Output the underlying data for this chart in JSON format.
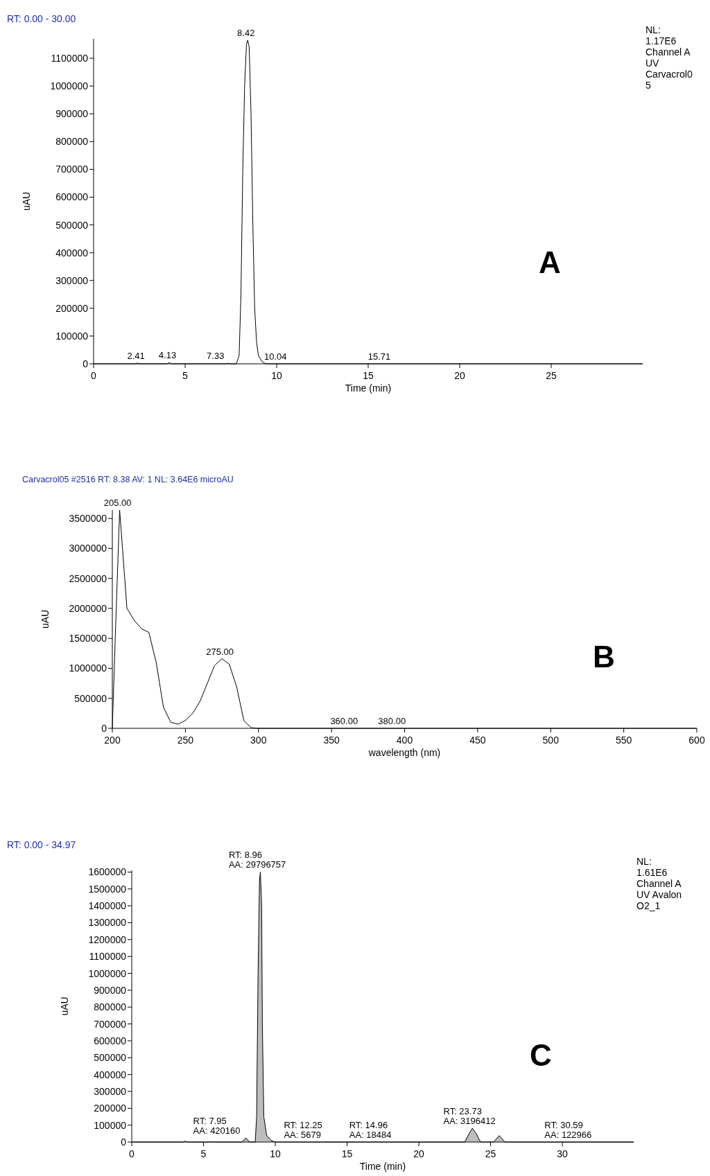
{
  "chart_data": [
    {
      "type": "line",
      "xlabel": "Time (min)",
      "ylabel": "uAU",
      "xlim": [
        0,
        30
      ],
      "xticks": [
        0,
        5,
        10,
        15,
        20,
        25
      ],
      "ylim": [
        0,
        1170000
      ],
      "yticks": [
        0,
        100000,
        200000,
        300000,
        400000,
        500000,
        600000,
        700000,
        800000,
        900000,
        1000000,
        1100000
      ],
      "grid": false,
      "marker": "none",
      "line_style": "solid",
      "series": [
        {
          "color": "#000000",
          "x": [
            0,
            2.3,
            2.41,
            2.5,
            4.0,
            4.13,
            4.25,
            7.2,
            7.33,
            7.45,
            7.8,
            7.95,
            8.05,
            8.15,
            8.25,
            8.35,
            8.42,
            8.5,
            8.6,
            8.7,
            8.8,
            8.9,
            9.0,
            9.2,
            9.4,
            30
          ],
          "values": [
            0,
            0,
            3000,
            0,
            0,
            4000,
            0,
            0,
            2000,
            0,
            0,
            30000,
            250000,
            700000,
            1000000,
            1150000,
            1165000,
            1140000,
            900000,
            500000,
            200000,
            80000,
            30000,
            8000,
            0,
            0
          ]
        }
      ],
      "annotations": [
        "RT: 0.00 - 30.00",
        "NL:\n1.17E6\nChannel A\nUV\nCarvacrol0\n5",
        "A",
        {
          "text": "8.42",
          "x": 8.42,
          "y": 1165000
        },
        {
          "text": "2.41",
          "x": 2.41,
          "y": 3000
        },
        {
          "text": "4.13",
          "x": 4.13,
          "y": 4000
        },
        {
          "text": "7.33",
          "x": 7.33,
          "y": 2000
        },
        {
          "text": "10.04",
          "x": 10.04,
          "y": 0
        },
        {
          "text": "15.71",
          "x": 15.71,
          "y": 0
        }
      ]
    },
    {
      "type": "line",
      "title": "Carvacrol05 #2516   RT: 8.38   AV: 1   NL: 3.64E6   microAU",
      "xlabel": "wavelength (nm)",
      "ylabel": "uAU",
      "xlim": [
        200,
        600
      ],
      "xticks": [
        200,
        250,
        300,
        350,
        400,
        450,
        500,
        550,
        600
      ],
      "ylim": [
        0,
        3640000
      ],
      "yticks": [
        0,
        500000,
        1000000,
        1500000,
        2000000,
        2500000,
        3000000,
        3500000
      ],
      "grid": false,
      "marker": "none",
      "line_style": "solid",
      "series": [
        {
          "color": "#000000",
          "x": [
            200,
            202,
            205,
            210,
            215,
            220,
            225,
            230,
            235,
            240,
            245,
            250,
            255,
            260,
            265,
            270,
            275,
            280,
            285,
            290,
            295,
            300,
            600
          ],
          "values": [
            0,
            1500000,
            3640000,
            2000000,
            1800000,
            1660000,
            1600000,
            1100000,
            350000,
            100000,
            70000,
            130000,
            250000,
            450000,
            750000,
            1050000,
            1160000,
            1070000,
            700000,
            130000,
            10000,
            0,
            0
          ]
        }
      ],
      "annotations": [
        "B",
        {
          "text": "205.00",
          "x": 205,
          "y": 3640000
        },
        {
          "text": "275.00",
          "x": 275,
          "y": 1160000
        },
        {
          "text": "360.00",
          "x": 360,
          "y": 0
        },
        {
          "text": "380.00",
          "x": 380,
          "y": 0
        }
      ]
    },
    {
      "type": "area",
      "xlabel": "Time (min)",
      "ylabel": "uAU",
      "xlim": [
        0,
        34.97
      ],
      "xticks": [
        0,
        5,
        10,
        15,
        20,
        25,
        30
      ],
      "ylim": [
        0,
        1610000
      ],
      "yticks": [
        0,
        100000,
        200000,
        300000,
        400000,
        500000,
        600000,
        700000,
        800000,
        900000,
        1000000,
        1100000,
        1200000,
        1300000,
        1400000,
        1500000,
        1600000
      ],
      "grid": false,
      "marker": "none",
      "line_style": "solid",
      "series": [
        {
          "color": "#000000",
          "x": [
            0,
            3.6,
            3.7,
            3.85,
            5.4,
            5.5,
            5.6,
            7.7,
            7.95,
            8.2,
            8.6,
            8.7,
            8.8,
            8.9,
            8.96,
            9.05,
            9.1,
            9.2,
            9.4,
            9.7,
            10,
            23.2,
            23.5,
            23.73,
            24.0,
            24.3,
            25.2,
            25.6,
            26.0,
            34.97
          ],
          "values": [
            0,
            0,
            6000,
            0,
            0,
            3000,
            0,
            0,
            25000,
            0,
            0,
            150000,
            1000000,
            1550000,
            1600000,
            1400000,
            700000,
            150000,
            40000,
            10000,
            0,
            0,
            50000,
            82000,
            50000,
            0,
            0,
            38000,
            0,
            0
          ]
        }
      ],
      "annotations": [
        "RT: 0.00 - 34.97",
        "NL:\n1.61E6\nChannel A\nUV  Avalon\nO2_1",
        "C",
        {
          "text": "RT: 8.96\nAA: 29796757",
          "x": 8.96,
          "y": 1600000
        },
        {
          "text": "RT: 7.95\nAA: 420160",
          "x": 7.95,
          "y": 25000
        },
        {
          "text": "RT: 12.25\nAA: 5679",
          "x": 12.25,
          "y": 0
        },
        {
          "text": "RT: 14.96\nAA: 18484",
          "x": 14.96,
          "y": 0
        },
        {
          "text": "RT: 23.73\nAA: 3196412",
          "x": 23.73,
          "y": 82000
        },
        {
          "text": "RT: 30.59\nAA: 122966",
          "x": 30.59,
          "y": 0
        }
      ]
    }
  ]
}
